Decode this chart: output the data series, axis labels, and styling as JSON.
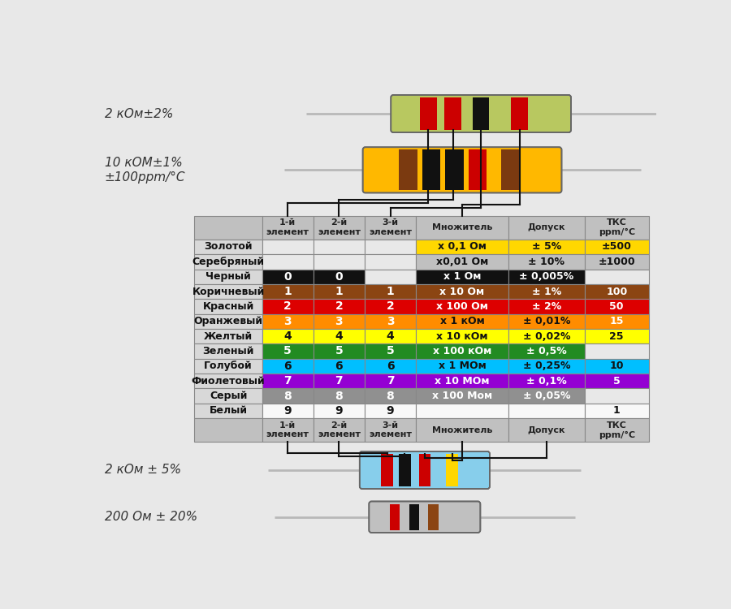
{
  "bg_color": "#e8e8e8",
  "rows": [
    {
      "name": "Золотой",
      "col1": "",
      "col2": "",
      "col3": "",
      "mult": "х 0,1 Ом",
      "tol": "± 5%",
      "tks": "±500",
      "c1": "#e8e8e8",
      "c2": "#e8e8e8",
      "c3": "#e8e8e8",
      "cm": "#FFD700",
      "ct": "#FFD700",
      "ck": "#FFD700",
      "txt_dark": true
    },
    {
      "name": "Серебряный",
      "col1": "",
      "col2": "",
      "col3": "",
      "mult": "х0,01 Ом",
      "tol": "± 10%",
      "tks": "±1000",
      "c1": "#e8e8e8",
      "c2": "#e8e8e8",
      "c3": "#e8e8e8",
      "cm": "#C0C0C0",
      "ct": "#C0C0C0",
      "ck": "#C0C0C0",
      "txt_dark": true
    },
    {
      "name": "Черный",
      "col1": "0",
      "col2": "0",
      "col3": "",
      "mult": "х 1 Ом",
      "tol": "± 0,005%",
      "tks": "",
      "c1": "#111111",
      "c2": "#111111",
      "c3": "#e8e8e8",
      "cm": "#111111",
      "ct": "#111111",
      "ck": "#e8e8e8",
      "txt_dark": false
    },
    {
      "name": "Коричневый",
      "col1": "1",
      "col2": "1",
      "col3": "1",
      "mult": "х 10 Ом",
      "tol": "± 1%",
      "tks": "100",
      "c1": "#8B4513",
      "c2": "#8B4513",
      "c3": "#8B4513",
      "cm": "#8B4513",
      "ct": "#8B4513",
      "ck": "#8B4513",
      "txt_dark": false
    },
    {
      "name": "Красный",
      "col1": "2",
      "col2": "2",
      "col3": "2",
      "mult": "х 100 Ом",
      "tol": "± 2%",
      "tks": "50",
      "c1": "#DD0000",
      "c2": "#DD0000",
      "c3": "#DD0000",
      "cm": "#DD0000",
      "ct": "#DD0000",
      "ck": "#DD0000",
      "txt_dark": false
    },
    {
      "name": "Оранжевый",
      "col1": "3",
      "col2": "3",
      "col3": "3",
      "mult": "х 1 кОм",
      "tol": "± 0,01%",
      "tks": "15",
      "c1": "#FF8C00",
      "c2": "#FF8C00",
      "c3": "#FF8C00",
      "cm": "#FF8C00",
      "ct": "#FF8C00",
      "ck": "#FF8C00",
      "txt_dark": false
    },
    {
      "name": "Желтый",
      "col1": "4",
      "col2": "4",
      "col3": "4",
      "mult": "х 10 кОм",
      "tol": "± 0,02%",
      "tks": "25",
      "c1": "#FFFF00",
      "c2": "#FFFF00",
      "c3": "#FFFF00",
      "cm": "#FFFF00",
      "ct": "#FFFF00",
      "ck": "#FFFF00",
      "txt_dark": true
    },
    {
      "name": "Зеленый",
      "col1": "5",
      "col2": "5",
      "col3": "5",
      "mult": "х 100 кОм",
      "tol": "± 0,5%",
      "tks": "",
      "c1": "#228B22",
      "c2": "#228B22",
      "c3": "#228B22",
      "cm": "#228B22",
      "ct": "#228B22",
      "ck": "#e8e8e8",
      "txt_dark": false
    },
    {
      "name": "Голубой",
      "col1": "6",
      "col2": "6",
      "col3": "6",
      "mult": "х 1 МОм",
      "tol": "± 0,25%",
      "tks": "10",
      "c1": "#00BFFF",
      "c2": "#00BFFF",
      "c3": "#00BFFF",
      "cm": "#00BFFF",
      "ct": "#00BFFF",
      "ck": "#00BFFF",
      "txt_dark": true
    },
    {
      "name": "Фиолетовый",
      "col1": "7",
      "col2": "7",
      "col3": "7",
      "mult": "х 10 МОм",
      "tol": "± 0,1%",
      "tks": "5",
      "c1": "#9400D3",
      "c2": "#9400D3",
      "c3": "#9400D3",
      "cm": "#9400D3",
      "ct": "#9400D3",
      "ck": "#9400D3",
      "txt_dark": false
    },
    {
      "name": "Серый",
      "col1": "8",
      "col2": "8",
      "col3": "8",
      "mult": "х 100 Мом",
      "tol": "± 0,05%",
      "tks": "",
      "c1": "#909090",
      "c2": "#909090",
      "c3": "#909090",
      "cm": "#909090",
      "ct": "#909090",
      "ck": "#e8e8e8",
      "txt_dark": false
    },
    {
      "name": "Белый",
      "col1": "9",
      "col2": "9",
      "col3": "9",
      "mult": "",
      "tol": "",
      "tks": "1",
      "c1": "#f8f8f8",
      "c2": "#f8f8f8",
      "c3": "#f8f8f8",
      "cm": "#f8f8f8",
      "ct": "#f8f8f8",
      "ck": "#f8f8f8",
      "txt_dark": true
    }
  ],
  "header": [
    "1-й\nэлемент",
    "2-й\nэлемент",
    "3-й\nэлемент",
    "Множитель",
    "Допуск",
    "ТКС\nppm/°С"
  ],
  "resistor1_label": "2 кОм±2%",
  "resistor2_label": "10 кОМ±1%\n±100ppm/°С",
  "resistor3_label": "2 кОм ± 5%",
  "resistor4_label": "200 Ом ± 20%",
  "line_color": "#111111"
}
